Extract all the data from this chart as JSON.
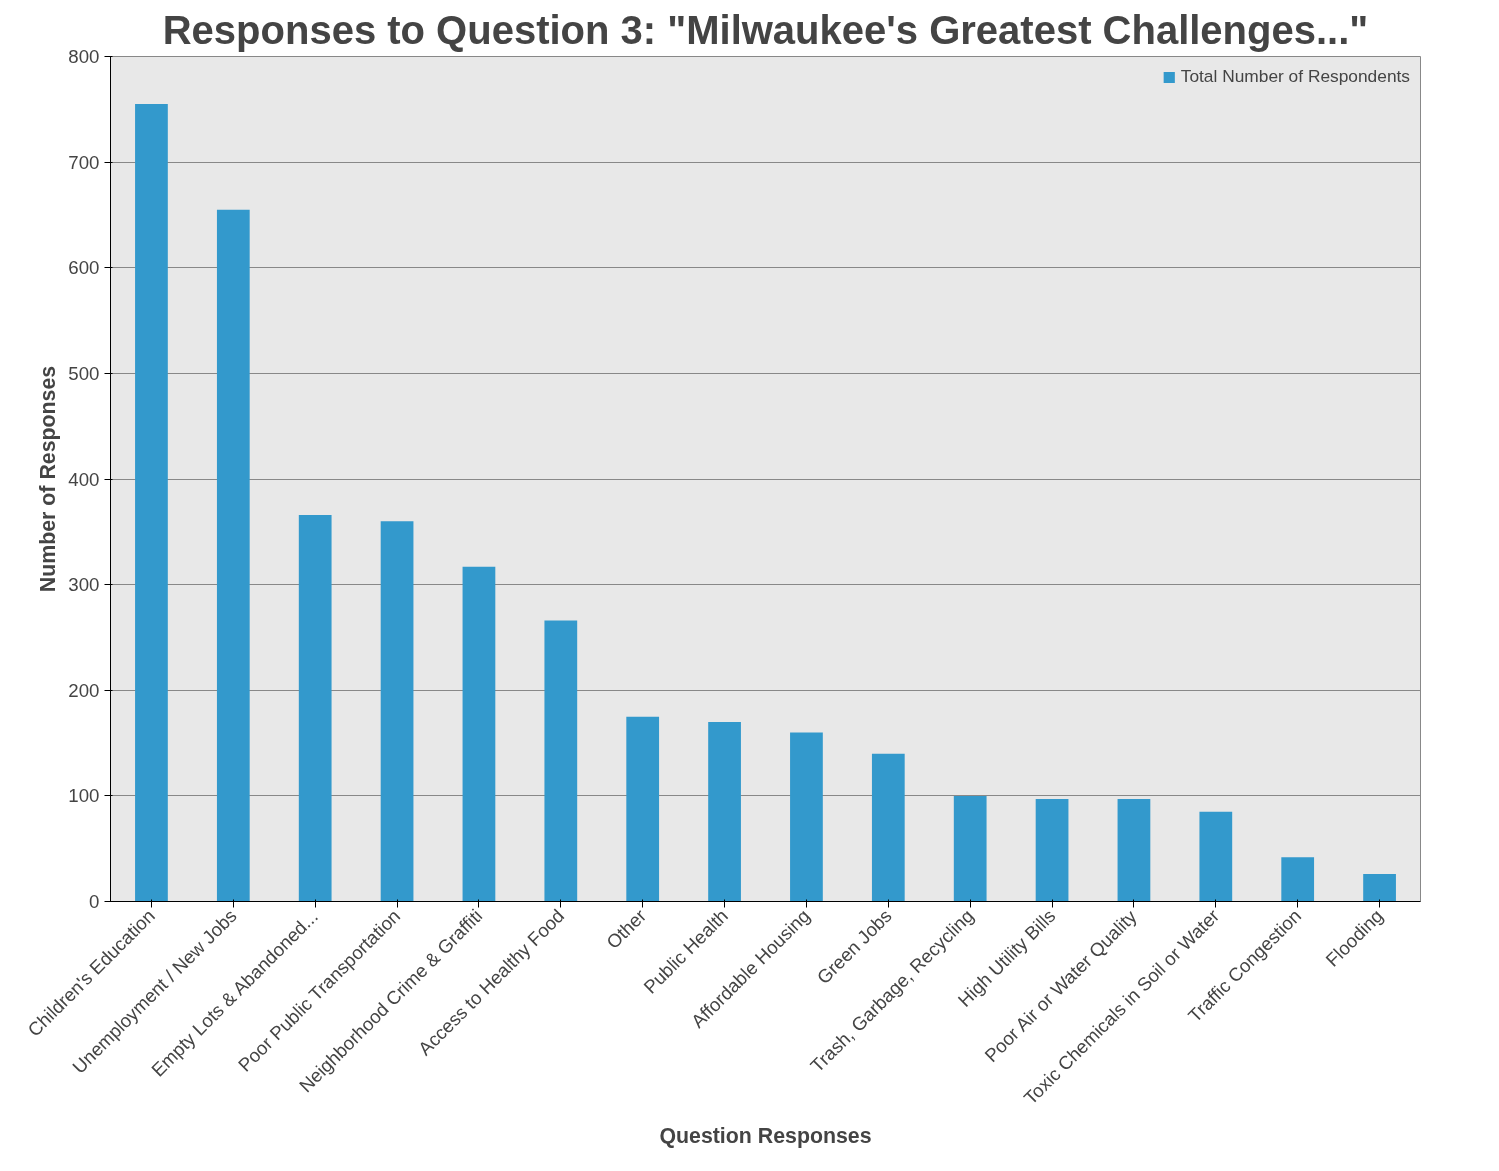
{
  "chart_data": {
    "type": "bar",
    "title": "Responses to Question 3: \"Milwaukee's Greatest Challenges...\"",
    "xlabel": "Question Responses",
    "ylabel": "Number of Responses",
    "categories": [
      "Children's Education",
      "Unemployment / New Jobs",
      "Empty Lots & Abandoned...",
      "Poor Public Transportation",
      "Neighborhood Crime & Graffiti",
      "Access to Healthy Food",
      "Other",
      "Public Health",
      "Affordable Housing",
      "Green Jobs",
      "Trash, Garbage, Recycling",
      "High Utility Bills",
      "Poor Air or Water Quality",
      "Toxic Chemicals in Soil or Water",
      "Traffic Congestion",
      "Flooding"
    ],
    "series": [
      {
        "name": "Total Number of Respondents",
        "color": "#3399cc",
        "values": [
          755,
          655,
          366,
          360,
          317,
          266,
          175,
          170,
          160,
          140,
          100,
          97,
          97,
          85,
          42,
          26
        ]
      }
    ],
    "ylim": [
      0,
      800
    ],
    "yticks": [
      0,
      100,
      200,
      300,
      400,
      500,
      600,
      700,
      800
    ],
    "grid": "y",
    "legend": "top right"
  }
}
